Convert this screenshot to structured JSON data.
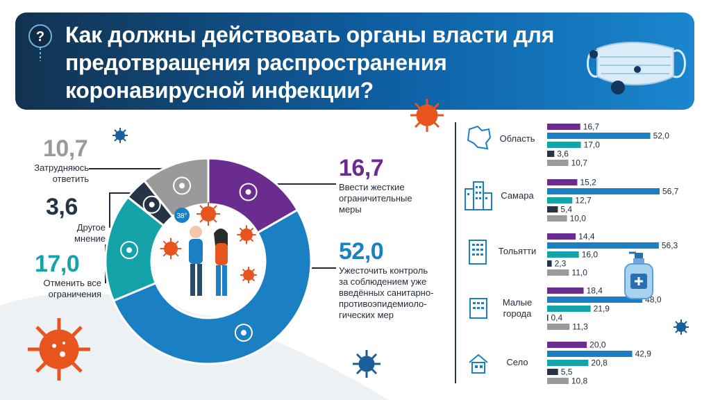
{
  "header": {
    "title_lines": [
      "Как должны действовать органы власти для",
      "предотвращения распространения",
      "коронавирусной инфекции?"
    ],
    "badge": "?"
  },
  "colors": {
    "purple": "#6a2c8f",
    "blue": "#1b7fc4",
    "teal": "#14a3a8",
    "dark": "#253445",
    "gray": "#9a9a9a",
    "virus": "#e8541e"
  },
  "chart_data": [
    {
      "type": "pie",
      "title": "",
      "slices": [
        {
          "value": 16.7,
          "display": "16,7",
          "label": "Ввести жесткие ограничительные меры",
          "color": "#6a2c8f"
        },
        {
          "value": 52.0,
          "display": "52,0",
          "label": "Ужесточить контроль за соблюдением уже введённых санитарно-противоэпидемиологических мер",
          "color": "#1b7fc4"
        },
        {
          "value": 17.0,
          "display": "17,0",
          "label": "Отменить все ограничения",
          "color": "#14a3a8"
        },
        {
          "value": 3.6,
          "display": "3,6",
          "label": "Другое мнение",
          "color": "#253445"
        },
        {
          "value": 10.7,
          "display": "10,7",
          "label": "Затрудняюсь ответить",
          "color": "#9a9a9a"
        }
      ],
      "center_badge": "38°"
    },
    {
      "type": "bar",
      "orientation": "horizontal",
      "categories": [
        "Область",
        "Самара",
        "Тольятти",
        "Малые города",
        "Село"
      ],
      "series": [
        {
          "values": [
            16.7,
            15.2,
            14.4,
            18.4,
            20.0
          ],
          "display": [
            "16,7",
            "15,2",
            "14,4",
            "18,4",
            "20,0"
          ],
          "color": "#6a2c8f"
        },
        {
          "values": [
            52.0,
            56.7,
            56.3,
            48.0,
            42.9
          ],
          "display": [
            "52,0",
            "56,7",
            "56,3",
            "48,0",
            "42,9"
          ],
          "color": "#1b7fc4"
        },
        {
          "values": [
            17.0,
            12.7,
            16.0,
            21.9,
            20.8
          ],
          "display": [
            "17,0",
            "12,7",
            "16,0",
            "21,9",
            "20,8"
          ],
          "color": "#14a3a8"
        },
        {
          "values": [
            3.6,
            5.4,
            2.3,
            0.4,
            5.5
          ],
          "display": [
            "3,6",
            "5,4",
            "2,3",
            "0,4",
            "5,5"
          ],
          "color": "#253445"
        },
        {
          "values": [
            10.7,
            10.0,
            11.0,
            11.3,
            10.8
          ],
          "display": [
            "10,7",
            "10,0",
            "11,0",
            "11,3",
            "10,8"
          ],
          "color": "#9a9a9a"
        }
      ],
      "xlim": [
        0,
        60
      ]
    }
  ],
  "left_labels": {
    "unsure": {
      "num": "10,7",
      "lines": [
        "Затрудняюсь",
        "ответить"
      ]
    },
    "other": {
      "num": "3,6",
      "lines": [
        "Другое",
        "мнение"
      ]
    },
    "cancel": {
      "num": "17,0",
      "lines": [
        "Отменить все",
        "ограничения"
      ]
    },
    "strict": {
      "num": "16,7",
      "lines": [
        "Ввести жесткие",
        "ограничительные",
        "меры"
      ]
    },
    "control": {
      "num": "52,0",
      "lines": [
        "Ужесточить контроль",
        "за соблюдением уже",
        "введённых санитарно-",
        "противоэпидемиоло-",
        "гических мер"
      ]
    }
  },
  "categories_display": [
    {
      "lines": [
        "Область"
      ],
      "icon": "region-map-icon"
    },
    {
      "lines": [
        "Самара"
      ],
      "icon": "city-buildings-icon"
    },
    {
      "lines": [
        "Тольятти"
      ],
      "icon": "building-icon"
    },
    {
      "lines": [
        "Малые",
        "города"
      ],
      "icon": "small-building-icon"
    },
    {
      "lines": [
        "Село"
      ],
      "icon": "village-house-icon"
    }
  ]
}
